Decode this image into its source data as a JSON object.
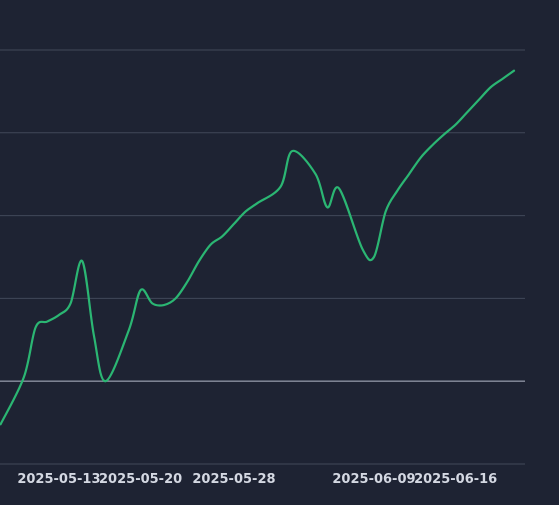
{
  "colors": {
    "background": "#1e2333",
    "grid": "#414859",
    "baseline": "#8b91a0",
    "line": "#2bb673",
    "tick_text": "#d4d8e2"
  },
  "chart_data": {
    "type": "line",
    "title": "",
    "xlabel": "",
    "ylabel": "",
    "grid": true,
    "x_tick_labels": [
      "2025-05-13",
      "2025-05-20",
      "2025-05-28",
      "2025-06-09",
      "2025-06-16"
    ],
    "y_gridlines": [
      -1,
      0,
      1,
      2,
      3,
      4
    ],
    "baseline_value": 0,
    "ylim": [
      -1,
      4
    ],
    "series": [
      {
        "name": "",
        "x": [
          "2025-05-08",
          "2025-05-10",
          "2025-05-11",
          "2025-05-12",
          "2025-05-13",
          "2025-05-14",
          "2025-05-15",
          "2025-05-16",
          "2025-05-17",
          "2025-05-19",
          "2025-05-20",
          "2025-05-21",
          "2025-05-22",
          "2025-05-23",
          "2025-05-24",
          "2025-05-25",
          "2025-05-26",
          "2025-05-27",
          "2025-05-28",
          "2025-05-29",
          "2025-05-30",
          "2025-06-01",
          "2025-06-02",
          "2025-06-04",
          "2025-06-05",
          "2025-06-06",
          "2025-06-08",
          "2025-06-09",
          "2025-06-10",
          "2025-06-11",
          "2025-06-12",
          "2025-06-13",
          "2025-06-14",
          "2025-06-15",
          "2025-06-16",
          "2025-06-17",
          "2025-06-18",
          "2025-06-19",
          "2025-06-20",
          "2025-06-21"
        ],
        "values": [
          -0.52,
          0.05,
          0.65,
          0.72,
          0.8,
          0.94,
          1.45,
          0.55,
          0.0,
          0.62,
          1.1,
          0.94,
          0.92,
          1.0,
          1.2,
          1.45,
          1.65,
          1.75,
          1.9,
          2.05,
          2.15,
          2.35,
          2.78,
          2.5,
          2.1,
          2.33,
          1.6,
          1.5,
          2.05,
          2.3,
          2.5,
          2.7,
          2.85,
          2.98,
          3.1,
          3.25,
          3.4,
          3.55,
          3.65,
          3.75
        ]
      }
    ]
  }
}
